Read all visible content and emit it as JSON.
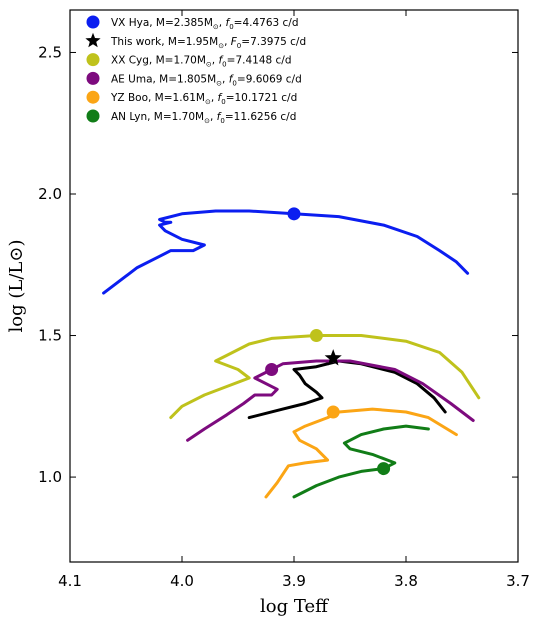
{
  "chart_data": {
    "type": "line",
    "xlabel": "log Teff",
    "ylabel": "log (L/L⊙)",
    "xlim": [
      4.1,
      3.7
    ],
    "ylim": [
      0.7,
      2.65
    ],
    "x_inverted": true,
    "xticks": [
      4.1,
      4.0,
      3.9,
      3.8,
      3.7
    ],
    "xtick_labels": [
      "4.1",
      "4.0",
      "3.9",
      "3.8",
      "3.7"
    ],
    "yticks": [
      1.0,
      1.5,
      2.0,
      2.5
    ],
    "ytick_labels": [
      "1.0",
      "1.5",
      "2.0",
      "2.5"
    ],
    "grid": false,
    "legend_position": "top-left",
    "series": [
      {
        "name": "VX Hya, M=2.385M⊙, f0=4.4763 c/d",
        "color": "#0b1ef0",
        "marker": "circle",
        "points": [
          [
            4.07,
            1.65
          ],
          [
            4.05,
            1.71
          ],
          [
            4.04,
            1.74
          ],
          [
            4.02,
            1.78
          ],
          [
            4.01,
            1.8
          ],
          [
            3.99,
            1.8
          ],
          [
            3.98,
            1.82
          ],
          [
            4.0,
            1.84
          ],
          [
            4.015,
            1.87
          ],
          [
            4.02,
            1.89
          ],
          [
            4.01,
            1.9
          ],
          [
            4.015,
            1.9
          ],
          [
            4.02,
            1.91
          ],
          [
            4.0,
            1.93
          ],
          [
            3.97,
            1.94
          ],
          [
            3.94,
            1.94
          ],
          [
            3.9,
            1.93
          ],
          [
            3.86,
            1.92
          ],
          [
            3.82,
            1.89
          ],
          [
            3.79,
            1.85
          ],
          [
            3.77,
            1.8
          ],
          [
            3.755,
            1.76
          ],
          [
            3.745,
            1.72
          ]
        ],
        "current_point": [
          3.9,
          1.93
        ]
      },
      {
        "name": "This work, M=1.95M⊙, F0=7.3975 c/d",
        "color": "#000000",
        "marker": "star",
        "points": [
          [
            3.94,
            1.21
          ],
          [
            3.91,
            1.24
          ],
          [
            3.89,
            1.26
          ],
          [
            3.875,
            1.28
          ],
          [
            3.88,
            1.3
          ],
          [
            3.89,
            1.33
          ],
          [
            3.895,
            1.36
          ],
          [
            3.9,
            1.38
          ],
          [
            3.88,
            1.39
          ],
          [
            3.86,
            1.41
          ],
          [
            3.84,
            1.4
          ],
          [
            3.81,
            1.37
          ],
          [
            3.79,
            1.33
          ],
          [
            3.775,
            1.28
          ],
          [
            3.765,
            1.23
          ]
        ],
        "current_point": [
          3.865,
          1.42
        ]
      },
      {
        "name": "XX Cyg, M=1.70M⊙, f0=7.4148 c/d",
        "color": "#bfc21c",
        "marker": "circle",
        "points": [
          [
            4.01,
            1.21
          ],
          [
            4.0,
            1.25
          ],
          [
            3.98,
            1.29
          ],
          [
            3.96,
            1.32
          ],
          [
            3.94,
            1.35
          ],
          [
            3.95,
            1.38
          ],
          [
            3.97,
            1.41
          ],
          [
            3.96,
            1.43
          ],
          [
            3.94,
            1.47
          ],
          [
            3.92,
            1.49
          ],
          [
            3.88,
            1.5
          ],
          [
            3.84,
            1.5
          ],
          [
            3.8,
            1.48
          ],
          [
            3.77,
            1.44
          ],
          [
            3.75,
            1.37
          ],
          [
            3.735,
            1.28
          ]
        ],
        "current_point": [
          3.88,
          1.5
        ]
      },
      {
        "name": "AE Uma, M=1.805M⊙, f0=9.6069 c/d",
        "color": "#7d0b7e",
        "marker": "circle",
        "points": [
          [
            3.995,
            1.13
          ],
          [
            3.98,
            1.17
          ],
          [
            3.96,
            1.22
          ],
          [
            3.945,
            1.26
          ],
          [
            3.935,
            1.29
          ],
          [
            3.92,
            1.29
          ],
          [
            3.915,
            1.31
          ],
          [
            3.935,
            1.35
          ],
          [
            3.92,
            1.38
          ],
          [
            3.91,
            1.4
          ],
          [
            3.88,
            1.41
          ],
          [
            3.85,
            1.41
          ],
          [
            3.81,
            1.38
          ],
          [
            3.785,
            1.33
          ],
          [
            3.76,
            1.26
          ],
          [
            3.74,
            1.2
          ]
        ],
        "current_point": [
          3.92,
          1.38
        ]
      },
      {
        "name": "YZ Boo, M=1.61M⊙, f0=10.1721 c/d",
        "color": "#fba515",
        "marker": "circle",
        "points": [
          [
            3.925,
            0.93
          ],
          [
            3.915,
            0.98
          ],
          [
            3.905,
            1.04
          ],
          [
            3.89,
            1.05
          ],
          [
            3.87,
            1.06
          ],
          [
            3.88,
            1.1
          ],
          [
            3.895,
            1.13
          ],
          [
            3.9,
            1.16
          ],
          [
            3.89,
            1.18
          ],
          [
            3.87,
            1.21
          ],
          [
            3.86,
            1.23
          ],
          [
            3.83,
            1.24
          ],
          [
            3.8,
            1.23
          ],
          [
            3.78,
            1.21
          ],
          [
            3.755,
            1.15
          ]
        ],
        "current_point": [
          3.865,
          1.23
        ]
      },
      {
        "name": "AN Lyn, M=1.70M⊙, f0=11.6256 c/d",
        "color": "#117d17",
        "marker": "circle",
        "points": [
          [
            3.9,
            0.93
          ],
          [
            3.88,
            0.97
          ],
          [
            3.86,
            1.0
          ],
          [
            3.84,
            1.02
          ],
          [
            3.82,
            1.03
          ],
          [
            3.81,
            1.05
          ],
          [
            3.83,
            1.08
          ],
          [
            3.85,
            1.1
          ],
          [
            3.855,
            1.12
          ],
          [
            3.85,
            1.13
          ],
          [
            3.84,
            1.15
          ],
          [
            3.82,
            1.17
          ],
          [
            3.8,
            1.18
          ],
          [
            3.78,
            1.17
          ]
        ],
        "current_point": [
          3.82,
          1.03
        ]
      }
    ],
    "legend": [
      {
        "marker": "circle",
        "color": "#0b1ef0",
        "pre": "VX Hya, M=2.385M",
        "sub1": "⊙",
        "mid": ", ",
        "f": "f",
        "sub2": "0",
        "post": "=4.4763 c/d"
      },
      {
        "marker": "star",
        "color": "#000000",
        "pre": "This work, M=1.95M",
        "sub1": "⊙",
        "mid": ", ",
        "f": "F",
        "sub2": "0",
        "post": "=7.3975 c/d"
      },
      {
        "marker": "circle",
        "color": "#bfc21c",
        "pre": "XX Cyg, M=1.70M",
        "sub1": "⊙",
        "mid": ", ",
        "f": "f",
        "sub2": "0",
        "post": "=7.4148 c/d"
      },
      {
        "marker": "circle",
        "color": "#7d0b7e",
        "pre": "AE Uma, M=1.805M",
        "sub1": "⊙",
        "mid": ", ",
        "f": "f",
        "sub2": "0",
        "post": "=9.6069 c/d"
      },
      {
        "marker": "circle",
        "color": "#fba515",
        "pre": "YZ Boo, M=1.61M",
        "sub1": "⊙",
        "mid": ", ",
        "f": "f",
        "sub2": "0",
        "post": "=10.1721 c/d"
      },
      {
        "marker": "circle",
        "color": "#117d17",
        "pre": "AN Lyn, M=1.70M",
        "sub1": "⊙",
        "mid": ", ",
        "f": "f",
        "sub2": "0",
        "post": "=11.6256 c/d"
      }
    ]
  }
}
